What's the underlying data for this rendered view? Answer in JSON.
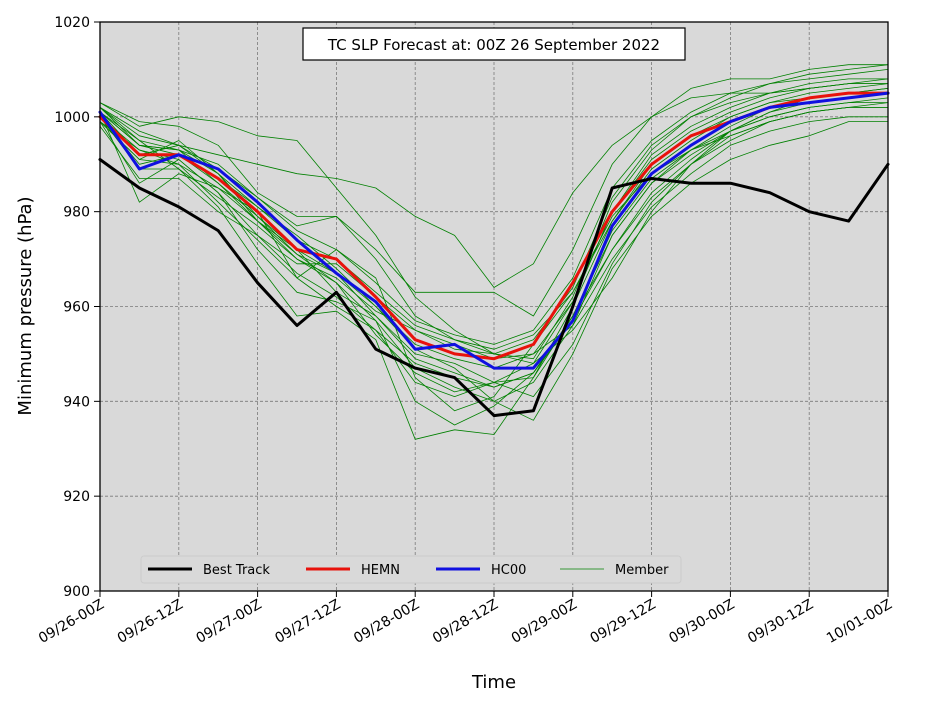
{
  "chart_data": {
    "type": "line",
    "title": "TC SLP Forecast at: 00Z 26 September 2022",
    "xlabel": "Time",
    "ylabel": "Minimum pressure (hPa)",
    "ylim": [
      900,
      1020
    ],
    "xlim": [
      "2022-09-26T00:00Z",
      "2022-10-01T00:00Z"
    ],
    "y_ticks": [
      900,
      920,
      940,
      960,
      980,
      1000,
      1020
    ],
    "x_tick_labels": [
      "09/26-00Z",
      "09/26-12Z",
      "09/27-00Z",
      "09/27-12Z",
      "09/28-00Z",
      "09/28-12Z",
      "09/29-00Z",
      "09/29-12Z",
      "09/30-00Z",
      "09/30-12Z",
      "10/01-00Z"
    ],
    "grid": true,
    "legend_position": "lower-left",
    "x": [
      "2022-09-26T00:00Z",
      "2022-09-26T06:00Z",
      "2022-09-26T12:00Z",
      "2022-09-26T18:00Z",
      "2022-09-27T00:00Z",
      "2022-09-27T06:00Z",
      "2022-09-27T12:00Z",
      "2022-09-27T18:00Z",
      "2022-09-28T00:00Z",
      "2022-09-28T06:00Z",
      "2022-09-28T12:00Z",
      "2022-09-28T18:00Z",
      "2022-09-29T00:00Z",
      "2022-09-29T06:00Z",
      "2022-09-29T12:00Z",
      "2022-09-29T18:00Z",
      "2022-09-30T00:00Z",
      "2022-09-30T06:00Z",
      "2022-09-30T12:00Z",
      "2022-09-30T18:00Z",
      "2022-10-01T00:00Z"
    ],
    "series": [
      {
        "name": "Best Track",
        "color": "#000000",
        "role": "best",
        "values": [
          991,
          985,
          981,
          976,
          965,
          956,
          963,
          951,
          947,
          945,
          937,
          938,
          960,
          985,
          987,
          986,
          986,
          984,
          980,
          978,
          990
        ]
      },
      {
        "name": "HEMN",
        "color": "#e8120c",
        "role": "mean",
        "values": [
          1000,
          992,
          992,
          987,
          980,
          972,
          970,
          962,
          953,
          950,
          949,
          952,
          965,
          980,
          990,
          996,
          999,
          1002,
          1004,
          1005,
          1005
        ]
      },
      {
        "name": "HC00",
        "color": "#1010e0",
        "role": "control",
        "values": [
          1001,
          989,
          992,
          989,
          982,
          974,
          967,
          961,
          951,
          952,
          947,
          947,
          957,
          977,
          988,
          994,
          999,
          1002,
          1003,
          1004,
          1005
        ]
      },
      {
        "name": "Member",
        "color": "#008000",
        "role": "member",
        "values": [
          1001,
          994,
          993,
          988,
          981,
          975,
          968,
          960,
          952,
          949,
          947,
          950,
          961,
          980,
          991,
          997,
          1001,
          1004,
          1006,
          1007,
          1008
        ]
      },
      {
        "values": [
          999,
          991,
          990,
          985,
          978,
          971,
          965,
          957,
          947,
          943,
          940,
          944,
          956,
          975,
          986,
          992,
          997,
          1000,
          1002,
          1003,
          1004
        ]
      },
      {
        "values": [
          1003,
          998,
          1000,
          999,
          996,
          995,
          985,
          975,
          962,
          955,
          950,
          949,
          962,
          982,
          993,
          1000,
          1004,
          1007,
          1009,
          1010,
          1011
        ]
      },
      {
        "values": [
          1002,
          997,
          994,
          992,
          990,
          988,
          987,
          985,
          979,
          975,
          964,
          969,
          984,
          994,
          1000,
          1006,
          1008,
          1008,
          1010,
          1011,
          1011
        ]
      },
      {
        "values": [
          999,
          986,
          991,
          984,
          972,
          963,
          961,
          957,
          940,
          935,
          939,
          946,
          958,
          976,
          987,
          993,
          998,
          1002,
          1004,
          1005,
          1006
        ]
      },
      {
        "values": [
          1001,
          982,
          988,
          985,
          980,
          966,
          972,
          966,
          945,
          938,
          941,
          952,
          963,
          979,
          988,
          993,
          996,
          999,
          1001,
          1002,
          1003
        ]
      },
      {
        "values": [
          1000,
          989,
          989,
          981,
          969,
          958,
          959,
          953,
          932,
          934,
          933,
          945,
          958,
          972,
          983,
          990,
          995,
          999,
          1001,
          1002,
          1002
        ]
      },
      {
        "values": [
          1002,
          995,
          993,
          990,
          983,
          977,
          979,
          970,
          958,
          953,
          951,
          954,
          963,
          978,
          989,
          995,
          1000,
          1003,
          1005,
          1006,
          1007
        ]
      },
      {
        "values": [
          998,
          987,
          987,
          980,
          975,
          969,
          969,
          962,
          955,
          951,
          950,
          948,
          955,
          966,
          980,
          990,
          997,
          1001,
          1003,
          1004,
          1005
        ]
      },
      {
        "values": [
          1001,
          992,
          994,
          988,
          979,
          971,
          967,
          958,
          950,
          948,
          944,
          941,
          952,
          969,
          982,
          990,
          996,
          999,
          1001,
          1002,
          1002
        ]
      },
      {
        "values": [
          1003,
          999,
          998,
          994,
          984,
          979,
          979,
          972,
          963,
          963,
          963,
          958,
          972,
          990,
          1000,
          1004,
          1005,
          1005,
          1006,
          1007,
          1007
        ]
      },
      {
        "values": [
          1000,
          993,
          990,
          982,
          974,
          966,
          960,
          955,
          944,
          941,
          944,
          945,
          960,
          978,
          990,
          996,
          1000,
          1003,
          1004,
          1005,
          1006
        ]
      },
      {
        "values": [
          1002,
          994,
          993,
          986,
          979,
          972,
          963,
          958,
          949,
          946,
          943,
          946,
          958,
          975,
          986,
          993,
          997,
          1000,
          1002,
          1003,
          1003
        ]
      },
      {
        "values": [
          999,
          991,
          995,
          988,
          978,
          970,
          965,
          954,
          946,
          942,
          944,
          948,
          961,
          980,
          992,
          998,
          1002,
          1005,
          1007,
          1008,
          1008
        ]
      },
      {
        "values": [
          1001,
          995,
          989,
          983,
          977,
          970,
          966,
          959,
          955,
          952,
          949,
          950,
          956,
          970,
          981,
          988,
          994,
          997,
          999,
          1000,
          1000
        ]
      },
      {
        "values": [
          1000,
          990,
          992,
          986,
          978,
          972,
          967,
          960,
          951,
          947,
          940,
          936,
          950,
          968,
          979,
          986,
          991,
          994,
          996,
          999,
          999
        ]
      },
      {
        "values": [
          1002,
          996,
          994,
          989,
          983,
          976,
          972,
          965,
          957,
          954,
          952,
          955,
          966,
          985,
          995,
          1001,
          1005,
          1007,
          1008,
          1009,
          1010
        ]
      },
      {
        "values": [
          999,
          993,
          991,
          984,
          975,
          967,
          962,
          955,
          948,
          945,
          943,
          946,
          957,
          972,
          984,
          991,
          997,
          1001,
          1004,
          1005,
          1005
        ]
      },
      {
        "values": [
          1001,
          994,
          992,
          987,
          981,
          974,
          970,
          963,
          956,
          953,
          950,
          953,
          964,
          983,
          994,
          1000,
          1003,
          1005,
          1006,
          1007,
          1007
        ]
      }
    ]
  }
}
